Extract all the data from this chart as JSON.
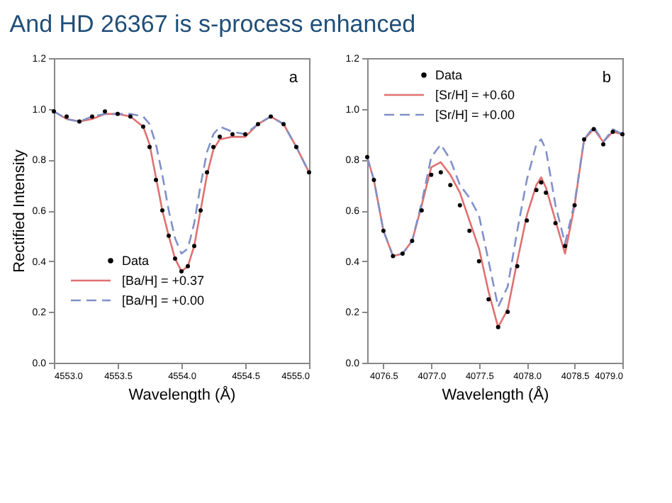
{
  "chart_data": [
    {
      "type": "line",
      "title": "And HD 26367 is s-process enhanced",
      "xlabel": "Wavelength (Å)",
      "ylabel": "Rectified Intensity",
      "annotations": [
        "a"
      ],
      "xlim": [
        4553.0,
        4555.0
      ],
      "xticks": [
        {
          "value": 4553.0,
          "label": "4553.0"
        },
        {
          "value": 4553.5,
          "label": "4553.5"
        },
        {
          "value": 4554.0,
          "label": "4554.0"
        },
        {
          "value": 4554.5,
          "label": "4554.5"
        },
        {
          "value": 4555.0,
          "label": "4555.0"
        }
      ],
      "ylim": [
        0,
        1.2
      ],
      "yticks": [
        {
          "value": 0,
          "label": "0.0"
        },
        0.2,
        0.4,
        0.6,
        0.8,
        {
          "value": 1,
          "label": "1.0"
        },
        {
          "value": 1.2,
          "label": "1.2"
        }
      ],
      "legend": "bottom left",
      "grid": false,
      "series": [
        {
          "name": "Data",
          "type": "scatter",
          "marker": "circle",
          "color": "#000000",
          "x": [
            4553.0,
            4553.1,
            4553.2,
            4553.3,
            4553.4,
            4553.5,
            4553.6,
            4553.7,
            4553.75,
            4553.8,
            4553.85,
            4553.9,
            4553.95,
            4554.0,
            4554.05,
            4554.1,
            4554.15,
            4554.2,
            4554.25,
            4554.3,
            4554.4,
            4554.5,
            4554.6,
            4554.7,
            4554.8,
            4554.9,
            4555.0
          ],
          "values": [
            0.99,
            0.97,
            0.95,
            0.97,
            0.99,
            0.98,
            0.97,
            0.93,
            0.85,
            0.72,
            0.6,
            0.5,
            0.41,
            0.36,
            0.38,
            0.46,
            0.6,
            0.75,
            0.85,
            0.89,
            0.9,
            0.9,
            0.94,
            0.97,
            0.94,
            0.85,
            0.75
          ]
        },
        {
          "name": "[Ba/H] = +0.37",
          "line_style": "solid",
          "color": "#e07070",
          "x": [
            4553.0,
            4553.1,
            4553.2,
            4553.3,
            4553.4,
            4553.5,
            4553.6,
            4553.7,
            4553.75,
            4553.8,
            4553.85,
            4553.9,
            4553.95,
            4554.0,
            4554.05,
            4554.1,
            4554.15,
            4554.2,
            4554.25,
            4554.3,
            4554.4,
            4554.5,
            4554.6,
            4554.7,
            4554.8,
            4554.9,
            4555.0
          ],
          "values": [
            0.99,
            0.96,
            0.95,
            0.96,
            0.98,
            0.98,
            0.97,
            0.93,
            0.86,
            0.73,
            0.6,
            0.5,
            0.41,
            0.36,
            0.38,
            0.46,
            0.6,
            0.74,
            0.84,
            0.88,
            0.89,
            0.89,
            0.94,
            0.97,
            0.94,
            0.85,
            0.75
          ]
        },
        {
          "name": "[Ba/H] = +0.00",
          "line_style": "dashed",
          "color": "#8090c8",
          "x": [
            4553.0,
            4553.1,
            4553.2,
            4553.3,
            4553.4,
            4553.5,
            4553.6,
            4553.7,
            4553.75,
            4553.8,
            4553.85,
            4553.9,
            4553.95,
            4554.0,
            4554.05,
            4554.1,
            4554.15,
            4554.2,
            4554.25,
            4554.3,
            4554.4,
            4554.5,
            4554.6,
            4554.7,
            4554.8,
            4554.9,
            4555.0
          ],
          "values": [
            0.99,
            0.96,
            0.95,
            0.97,
            0.98,
            0.98,
            0.98,
            0.97,
            0.94,
            0.86,
            0.74,
            0.6,
            0.49,
            0.43,
            0.45,
            0.55,
            0.7,
            0.83,
            0.9,
            0.93,
            0.91,
            0.9,
            0.94,
            0.97,
            0.94,
            0.85,
            0.75
          ]
        }
      ]
    },
    {
      "type": "line",
      "xlabel": "Wavelength (Å)",
      "annotations": [
        "b"
      ],
      "xlim": [
        4076.33,
        4079.0
      ],
      "xticks": [
        {
          "value": 4076.5,
          "label": "4076.5"
        },
        {
          "value": 4077.0,
          "label": "4077.0"
        },
        {
          "value": 4077.5,
          "label": "4077.5"
        },
        {
          "value": 4078.0,
          "label": "4078.0"
        },
        {
          "value": 4078.5,
          "label": "4078.5"
        },
        {
          "value": 4079.0,
          "label": "4079.0"
        }
      ],
      "ylim": [
        0,
        1.2
      ],
      "yticks": [
        {
          "value": 0,
          "label": "0.0"
        },
        0.2,
        0.4,
        0.6,
        0.8,
        {
          "value": 1,
          "label": "1.0"
        },
        {
          "value": 1.2,
          "label": "1.2"
        }
      ],
      "legend": "top left",
      "grid": false,
      "series": [
        {
          "name": "Data",
          "type": "scatter",
          "marker": "circle",
          "color": "#000000",
          "x": [
            4076.33,
            4076.4,
            4076.5,
            4076.6,
            4076.7,
            4076.8,
            4076.9,
            4077.0,
            4077.1,
            4077.2,
            4077.3,
            4077.4,
            4077.5,
            4077.6,
            4077.7,
            4077.8,
            4077.9,
            4078.0,
            4078.1,
            4078.15,
            4078.2,
            4078.3,
            4078.4,
            4078.5,
            4078.6,
            4078.7,
            4078.8,
            4078.9,
            4079.0
          ],
          "values": [
            0.81,
            0.72,
            0.52,
            0.42,
            0.43,
            0.48,
            0.6,
            0.74,
            0.75,
            0.7,
            0.62,
            0.52,
            0.4,
            0.25,
            0.14,
            0.2,
            0.38,
            0.56,
            0.68,
            0.71,
            0.67,
            0.55,
            0.46,
            0.62,
            0.88,
            0.92,
            0.86,
            0.91,
            0.9
          ]
        },
        {
          "name": "[Sr/H] = +0.60",
          "line_style": "solid",
          "color": "#e07070",
          "x": [
            4076.33,
            4076.4,
            4076.5,
            4076.6,
            4076.7,
            4076.8,
            4076.9,
            4077.0,
            4077.1,
            4077.2,
            4077.3,
            4077.4,
            4077.5,
            4077.6,
            4077.7,
            4077.8,
            4077.9,
            4078.0,
            4078.1,
            4078.15,
            4078.2,
            4078.3,
            4078.4,
            4078.5,
            4078.6,
            4078.7,
            4078.8,
            4078.9,
            4079.0
          ],
          "values": [
            0.81,
            0.72,
            0.52,
            0.42,
            0.43,
            0.48,
            0.62,
            0.77,
            0.79,
            0.74,
            0.67,
            0.56,
            0.45,
            0.28,
            0.14,
            0.21,
            0.4,
            0.58,
            0.7,
            0.73,
            0.69,
            0.56,
            0.43,
            0.62,
            0.88,
            0.92,
            0.87,
            0.91,
            0.9
          ]
        },
        {
          "name": "[Sr/H] = +0.00",
          "line_style": "dashed",
          "color": "#8090c8",
          "x": [
            4076.33,
            4076.4,
            4076.5,
            4076.6,
            4076.7,
            4076.8,
            4076.9,
            4077.0,
            4077.1,
            4077.2,
            4077.3,
            4077.4,
            4077.5,
            4077.6,
            4077.7,
            4077.8,
            4077.9,
            4078.0,
            4078.1,
            4078.15,
            4078.2,
            4078.3,
            4078.4,
            4078.5,
            4078.6,
            4078.7,
            4078.8,
            4078.9,
            4079.0
          ],
          "values": [
            0.81,
            0.72,
            0.52,
            0.42,
            0.43,
            0.48,
            0.63,
            0.81,
            0.86,
            0.8,
            0.7,
            0.65,
            0.58,
            0.4,
            0.22,
            0.3,
            0.52,
            0.72,
            0.86,
            0.88,
            0.84,
            0.62,
            0.47,
            0.63,
            0.88,
            0.93,
            0.87,
            0.92,
            0.9
          ]
        }
      ]
    }
  ]
}
